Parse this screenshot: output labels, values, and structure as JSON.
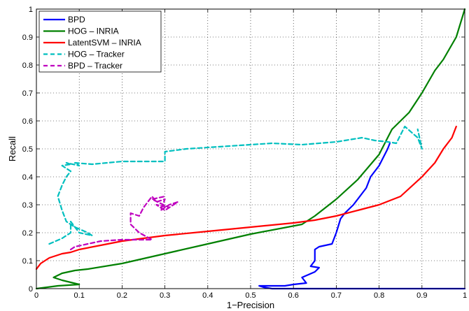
{
  "chart_data": {
    "type": "line",
    "title": "",
    "xlabel": "1−Precision",
    "ylabel": "Recall",
    "xlim": [
      0,
      1
    ],
    "ylim": [
      0,
      1
    ],
    "grid": true,
    "grid_style": "dotted",
    "legend_position": "top-left",
    "x_ticks": [
      0,
      0.1,
      0.2,
      0.3,
      0.4,
      0.5,
      0.6,
      0.7,
      0.8,
      0.9,
      1
    ],
    "x_tick_labels": [
      "0",
      "0.1",
      "0.2",
      "0.3",
      "0.4",
      "0.5",
      "0.6",
      "0.7",
      "0.8",
      "0.9",
      "1"
    ],
    "y_ticks": [
      0,
      0.1,
      0.2,
      0.3,
      0.4,
      0.5,
      0.6,
      0.7,
      0.8,
      0.9,
      1
    ],
    "y_tick_labels": [
      "0",
      "0.1",
      "0.2",
      "0.3",
      "0.4",
      "0.5",
      "0.6",
      "0.7",
      "0.8",
      "0.9",
      "1"
    ],
    "series": [
      {
        "name": "BPD",
        "color": "#0000ff",
        "style": "solid",
        "points": [
          [
            1.0,
            0.0
          ],
          [
            0.63,
            0.0
          ],
          [
            0.55,
            0.0
          ],
          [
            0.53,
            0.005
          ],
          [
            0.52,
            0.01
          ],
          [
            0.58,
            0.01
          ],
          [
            0.6,
            0.015
          ],
          [
            0.63,
            0.02
          ],
          [
            0.62,
            0.04
          ],
          [
            0.65,
            0.06
          ],
          [
            0.66,
            0.075
          ],
          [
            0.64,
            0.08
          ],
          [
            0.65,
            0.1
          ],
          [
            0.65,
            0.14
          ],
          [
            0.66,
            0.15
          ],
          [
            0.69,
            0.16
          ],
          [
            0.7,
            0.2
          ],
          [
            0.71,
            0.25
          ],
          [
            0.72,
            0.27
          ],
          [
            0.74,
            0.3
          ],
          [
            0.76,
            0.34
          ],
          [
            0.77,
            0.36
          ],
          [
            0.78,
            0.4
          ],
          [
            0.8,
            0.44
          ],
          [
            0.81,
            0.47
          ],
          [
            0.82,
            0.5
          ],
          [
            0.825,
            0.52
          ]
        ]
      },
      {
        "name": "HOG – INRIA",
        "color": "#008000",
        "style": "solid",
        "points": [
          [
            0.0,
            0.0
          ],
          [
            0.05,
            0.01
          ],
          [
            0.1,
            0.015
          ],
          [
            0.06,
            0.03
          ],
          [
            0.04,
            0.04
          ],
          [
            0.06,
            0.055
          ],
          [
            0.09,
            0.065
          ],
          [
            0.12,
            0.07
          ],
          [
            0.2,
            0.09
          ],
          [
            0.3,
            0.125
          ],
          [
            0.4,
            0.16
          ],
          [
            0.5,
            0.195
          ],
          [
            0.62,
            0.23
          ],
          [
            0.65,
            0.26
          ],
          [
            0.7,
            0.32
          ],
          [
            0.75,
            0.39
          ],
          [
            0.8,
            0.48
          ],
          [
            0.82,
            0.54
          ],
          [
            0.83,
            0.57
          ],
          [
            0.87,
            0.63
          ],
          [
            0.9,
            0.7
          ],
          [
            0.93,
            0.78
          ],
          [
            0.95,
            0.82
          ],
          [
            0.98,
            0.9
          ],
          [
            1.0,
            1.0
          ]
        ]
      },
      {
        "name": "LatentSVM – INRIA",
        "color": "#ff0000",
        "style": "solid",
        "points": [
          [
            0.0,
            0.07
          ],
          [
            0.01,
            0.09
          ],
          [
            0.02,
            0.1
          ],
          [
            0.03,
            0.11
          ],
          [
            0.04,
            0.115
          ],
          [
            0.06,
            0.125
          ],
          [
            0.08,
            0.13
          ],
          [
            0.1,
            0.14
          ],
          [
            0.15,
            0.155
          ],
          [
            0.2,
            0.17
          ],
          [
            0.3,
            0.19
          ],
          [
            0.4,
            0.205
          ],
          [
            0.5,
            0.22
          ],
          [
            0.6,
            0.235
          ],
          [
            0.65,
            0.245
          ],
          [
            0.7,
            0.26
          ],
          [
            0.75,
            0.28
          ],
          [
            0.8,
            0.3
          ],
          [
            0.85,
            0.33
          ],
          [
            0.9,
            0.4
          ],
          [
            0.93,
            0.45
          ],
          [
            0.95,
            0.5
          ],
          [
            0.97,
            0.54
          ],
          [
            0.98,
            0.58
          ]
        ]
      },
      {
        "name": "HOG – Tracker",
        "color": "#00bfbf",
        "style": "dashed",
        "points": [
          [
            0.03,
            0.16
          ],
          [
            0.06,
            0.18
          ],
          [
            0.08,
            0.2
          ],
          [
            0.08,
            0.24
          ],
          [
            0.1,
            0.2
          ],
          [
            0.13,
            0.19
          ],
          [
            0.12,
            0.2
          ],
          [
            0.09,
            0.22
          ],
          [
            0.07,
            0.24
          ],
          [
            0.06,
            0.28
          ],
          [
            0.05,
            0.33
          ],
          [
            0.06,
            0.37
          ],
          [
            0.07,
            0.4
          ],
          [
            0.08,
            0.42
          ],
          [
            0.07,
            0.43
          ],
          [
            0.06,
            0.44
          ],
          [
            0.08,
            0.445
          ],
          [
            0.07,
            0.45
          ],
          [
            0.1,
            0.44
          ],
          [
            0.09,
            0.45
          ],
          [
            0.13,
            0.445
          ],
          [
            0.2,
            0.455
          ],
          [
            0.3,
            0.455
          ],
          [
            0.3,
            0.49
          ],
          [
            0.35,
            0.5
          ],
          [
            0.45,
            0.51
          ],
          [
            0.55,
            0.52
          ],
          [
            0.62,
            0.515
          ],
          [
            0.7,
            0.525
          ],
          [
            0.76,
            0.54
          ],
          [
            0.79,
            0.53
          ],
          [
            0.82,
            0.525
          ],
          [
            0.84,
            0.52
          ],
          [
            0.86,
            0.58
          ],
          [
            0.89,
            0.54
          ],
          [
            0.9,
            0.5
          ],
          [
            0.89,
            0.57
          ]
        ]
      },
      {
        "name": "BPD – Tracker",
        "color": "#bf00bf",
        "style": "dashed",
        "points": [
          [
            0.08,
            0.14
          ],
          [
            0.09,
            0.15
          ],
          [
            0.12,
            0.16
          ],
          [
            0.15,
            0.17
          ],
          [
            0.2,
            0.175
          ],
          [
            0.27,
            0.175
          ],
          [
            0.24,
            0.2
          ],
          [
            0.22,
            0.23
          ],
          [
            0.22,
            0.27
          ],
          [
            0.24,
            0.26
          ],
          [
            0.25,
            0.29
          ],
          [
            0.26,
            0.31
          ],
          [
            0.27,
            0.33
          ],
          [
            0.28,
            0.31
          ],
          [
            0.3,
            0.32
          ],
          [
            0.29,
            0.28
          ],
          [
            0.31,
            0.3
          ],
          [
            0.33,
            0.31
          ],
          [
            0.3,
            0.28
          ],
          [
            0.28,
            0.3
          ],
          [
            0.31,
            0.29
          ],
          [
            0.27,
            0.32
          ],
          [
            0.3,
            0.33
          ]
        ]
      }
    ]
  }
}
